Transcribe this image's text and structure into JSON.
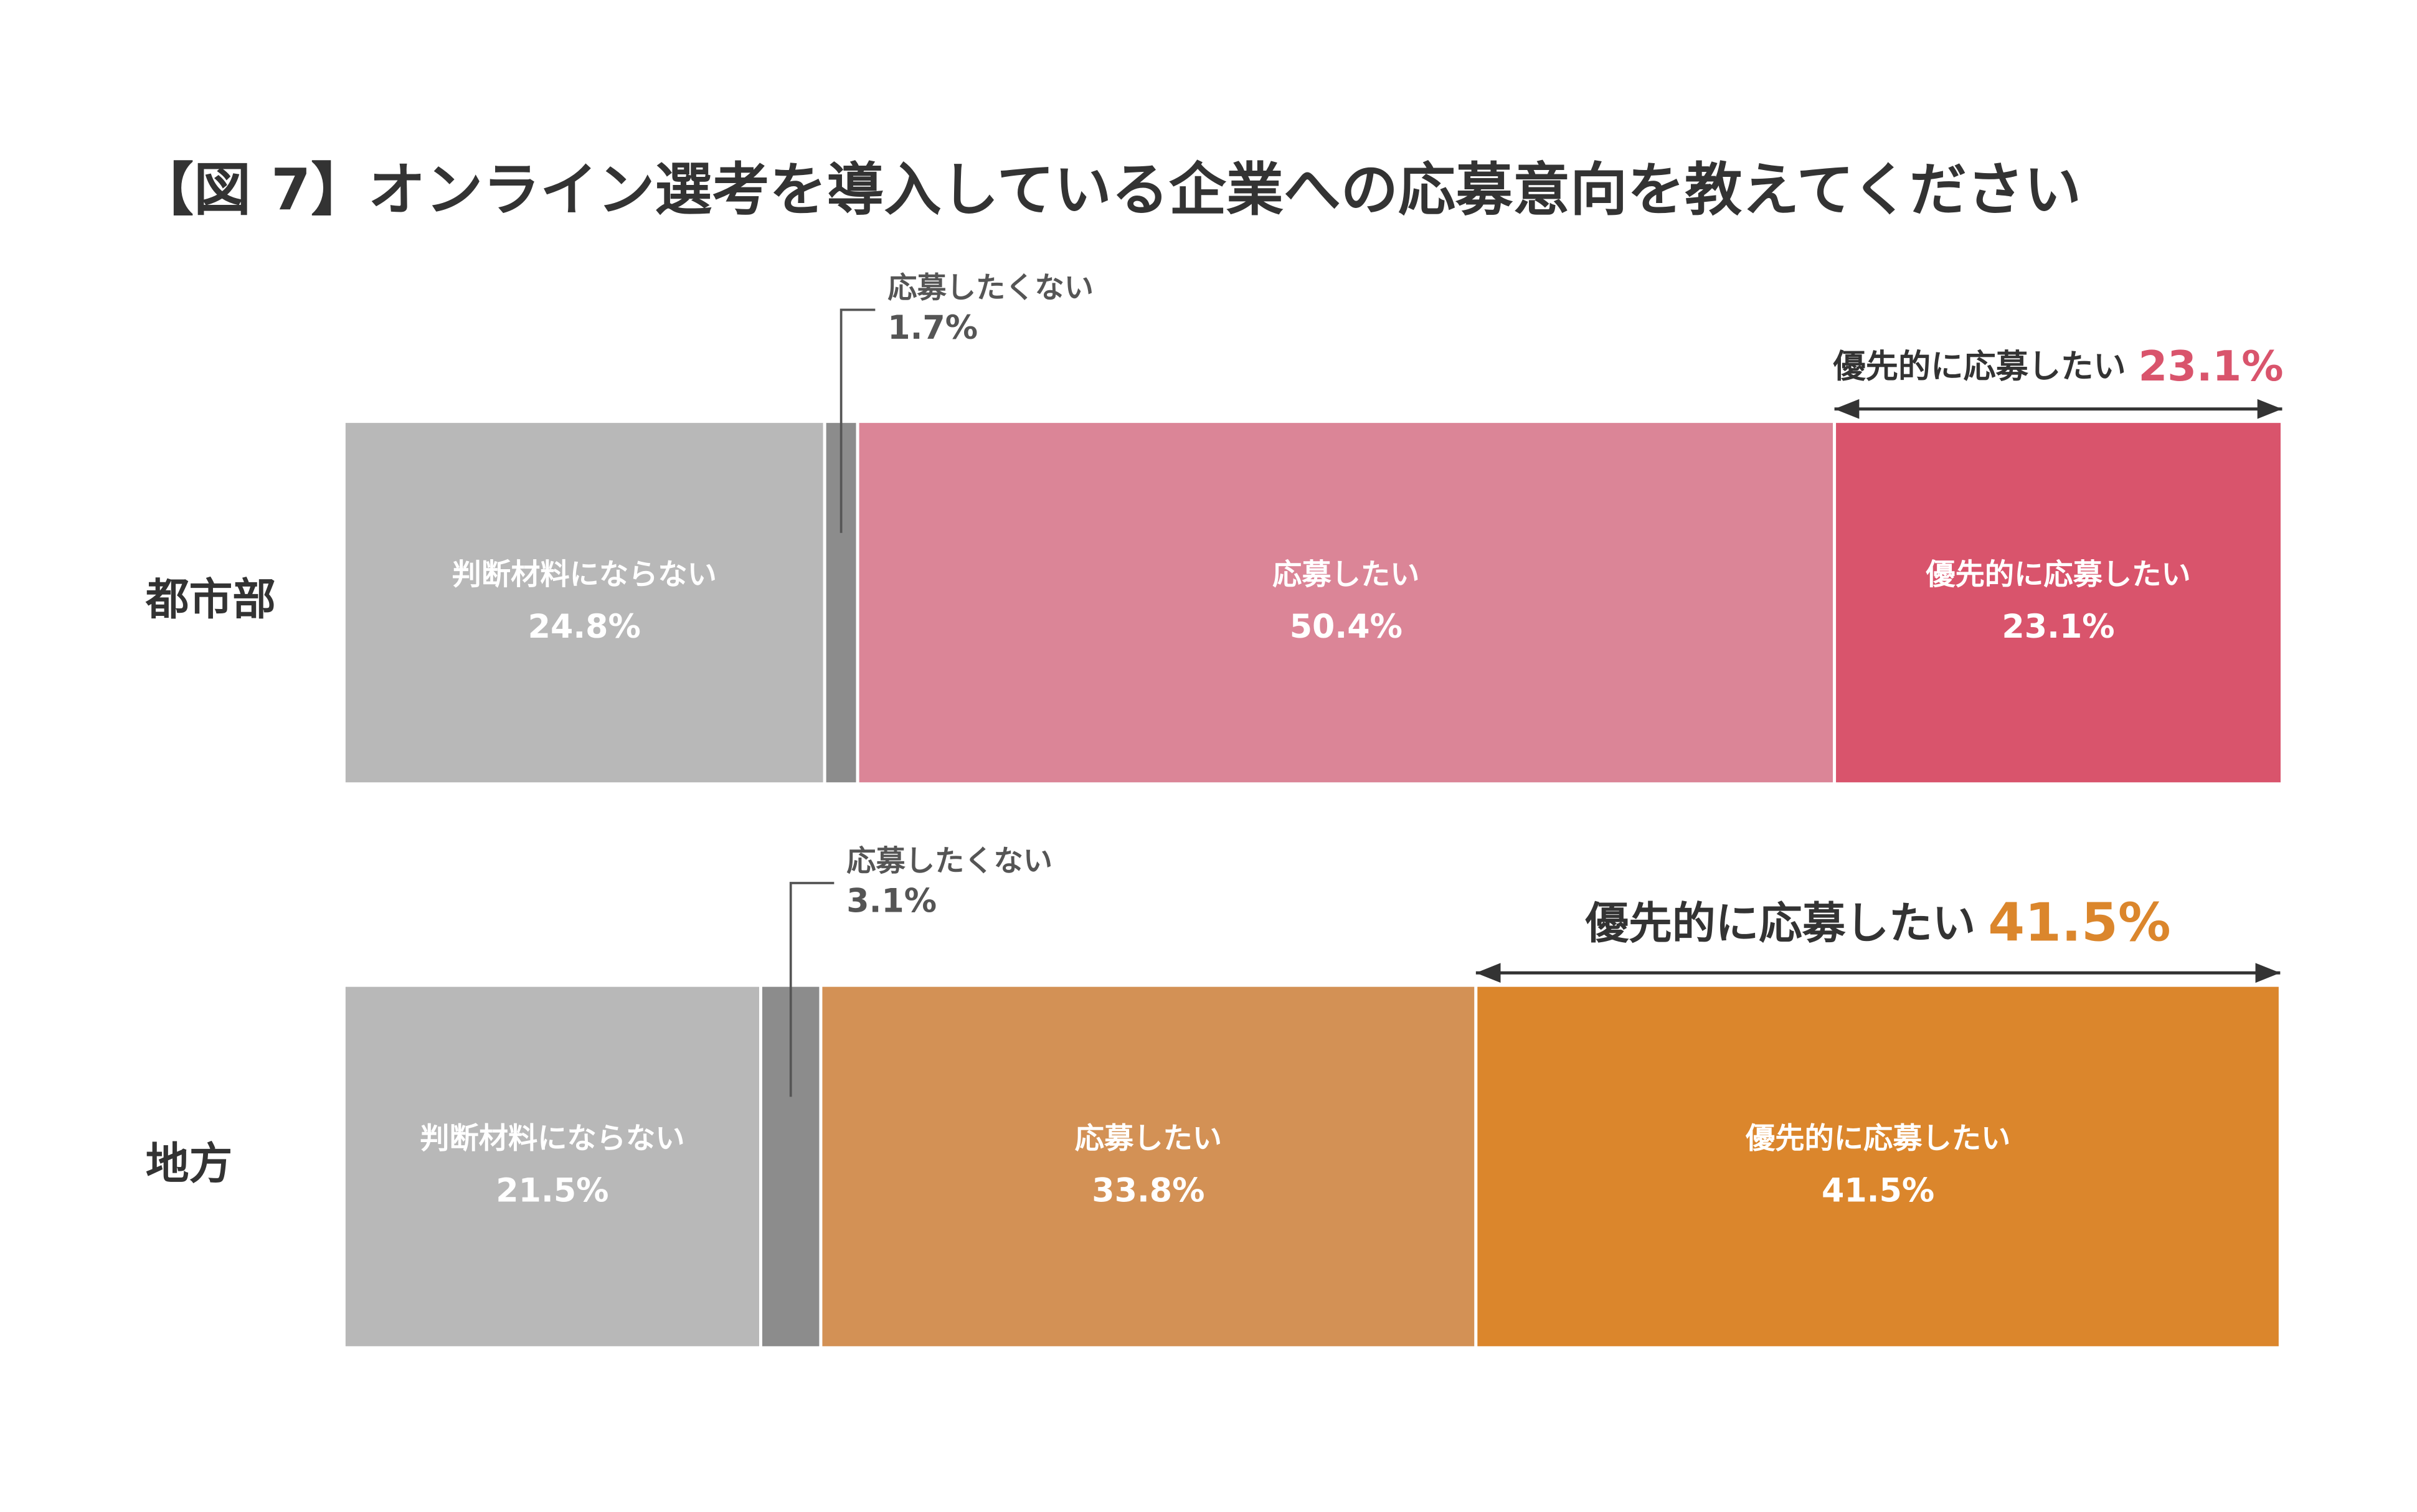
{
  "chart_data": {
    "type": "bar",
    "orientation": "horizontal",
    "stacked": true,
    "title": "【図 7】オンライン選考を導入している企業への応募意向を教えてください",
    "categories": [
      "都市部",
      "地方"
    ],
    "xlim": [
      0,
      100
    ],
    "series": [
      {
        "name": "判断材料にならない",
        "colors": [
          "#b8b8b8",
          "#b8b8b8"
        ],
        "values": [
          24.8,
          21.5
        ],
        "value_labels": [
          "24.8%",
          "21.5%"
        ]
      },
      {
        "name": "応募したくない",
        "colors": [
          "#8c8c8c",
          "#8c8c8c"
        ],
        "values": [
          1.7,
          3.1
        ],
        "value_labels": [
          "1.7%",
          "3.1%"
        ]
      },
      {
        "name": "応募したい",
        "colors": [
          "#db8597",
          "#d39155"
        ],
        "values": [
          50.4,
          33.8
        ],
        "value_labels": [
          "50.4%",
          "33.8%"
        ]
      },
      {
        "name": "優先的に応募したい",
        "colors": [
          "#d9546c",
          "#db862c"
        ],
        "values": [
          23.1,
          41.5
        ],
        "value_labels": [
          "23.1%",
          "41.5%"
        ]
      }
    ]
  }
}
